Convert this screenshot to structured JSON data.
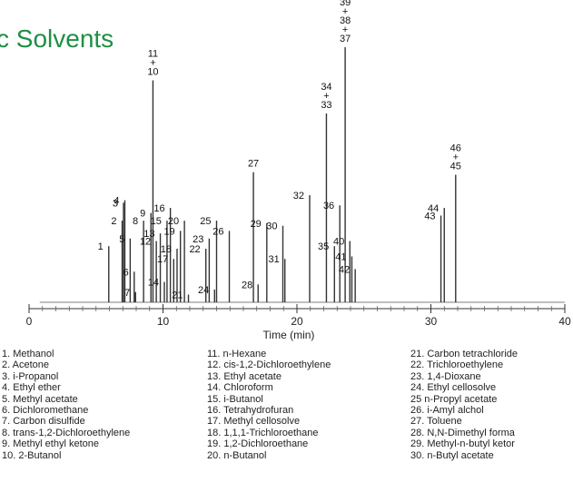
{
  "title": "c Solvents",
  "chart_data": {
    "type": "line",
    "xlabel": "Time (min)",
    "xlim": [
      0,
      40
    ],
    "x_ticks": [
      "0",
      "10",
      "20",
      "30",
      "40"
    ],
    "peaks": [
      {
        "label": "1",
        "time": 5.95,
        "height": 0.22
      },
      {
        "label": "2",
        "time": 6.95,
        "height": 0.32
      },
      {
        "label": "3",
        "time": 7.05,
        "height": 0.39
      },
      {
        "label": "4",
        "time": 7.15,
        "height": 0.4
      },
      {
        "label": "5",
        "time": 7.55,
        "height": 0.25
      },
      {
        "label": "6",
        "time": 7.85,
        "height": 0.12
      },
      {
        "label": "7",
        "time": 7.95,
        "height": 0.04
      },
      {
        "label": "8",
        "time": 8.55,
        "height": 0.32
      },
      {
        "label": "9",
        "time": 9.1,
        "height": 0.35
      },
      {
        "label": "11+10",
        "time": 9.25,
        "height": 0.87
      },
      {
        "label": "12",
        "time": 9.5,
        "height": 0.24
      },
      {
        "label": "13",
        "time": 9.8,
        "height": 0.27
      },
      {
        "label": "14",
        "time": 10.1,
        "height": 0.08
      },
      {
        "label": "15",
        "time": 10.3,
        "height": 0.32
      },
      {
        "label": "16",
        "time": 10.55,
        "height": 0.37
      },
      {
        "label": "17",
        "time": 10.8,
        "height": 0.17
      },
      {
        "label": "18",
        "time": 11.05,
        "height": 0.21
      },
      {
        "label": "19",
        "time": 11.3,
        "height": 0.28
      },
      {
        "label": "20",
        "time": 11.6,
        "height": 0.32
      },
      {
        "label": "21",
        "time": 11.9,
        "height": 0.03
      },
      {
        "label": "22",
        "time": 13.2,
        "height": 0.21
      },
      {
        "label": "23",
        "time": 13.45,
        "height": 0.25
      },
      {
        "label": "24",
        "time": 13.85,
        "height": 0.05
      },
      {
        "label": "25",
        "time": 14.0,
        "height": 0.32
      },
      {
        "label": "26",
        "time": 14.95,
        "height": 0.28
      },
      {
        "label": "27",
        "time": 16.75,
        "height": 0.51
      },
      {
        "label": "28",
        "time": 17.1,
        "height": 0.07
      },
      {
        "label": "29",
        "time": 17.75,
        "height": 0.31
      },
      {
        "label": "30",
        "time": 18.95,
        "height": 0.3
      },
      {
        "label": "31",
        "time": 19.1,
        "height": 0.17
      },
      {
        "label": "32",
        "time": 20.95,
        "height": 0.42
      },
      {
        "label": "34+33",
        "time": 22.2,
        "height": 0.74
      },
      {
        "label": "35",
        "time": 22.8,
        "height": 0.22
      },
      {
        "label": "36",
        "time": 23.2,
        "height": 0.38
      },
      {
        "label": "39+38+37",
        "time": 23.6,
        "height": 1.0
      },
      {
        "label": "40",
        "time": 23.95,
        "height": 0.24
      },
      {
        "label": "41",
        "time": 24.1,
        "height": 0.18
      },
      {
        "label": "42",
        "time": 24.35,
        "height": 0.13
      },
      {
        "label": "43",
        "time": 30.75,
        "height": 0.34
      },
      {
        "label": "44",
        "time": 31.0,
        "height": 0.37
      },
      {
        "label": "46+45",
        "time": 31.85,
        "height": 0.5
      }
    ]
  },
  "legend": {
    "col1": [
      "1. Methanol",
      "2. Acetone",
      "3. i-Propanol",
      "4. Ethyl ether",
      "5. Methyl acetate",
      "6. Dichloromethane",
      "7. Carbon disulfide",
      "8. trans-1,2-Dichloroethylene",
      "9. Methyl ethyl ketone",
      "10. 2-Butanol"
    ],
    "col2": [
      "11. n-Hexane",
      "12. cis-1,2-Dichloroethylene",
      "13. Ethyl acetate",
      "14. Chloroform",
      "15. i-Butanol",
      "16. Tetrahydrofuran",
      "17. Methyl cellosolve",
      "18. 1,1,1-Trichloroethane",
      "19. 1,2-Dichloroethane",
      "20. n-Butanol"
    ],
    "col3": [
      "21. Carbon tetrachloride",
      "22. Trichloroethylene",
      "23. 1,4-Dioxane",
      "24. Ethyl cellosolve",
      "25 n-Propyl acetate",
      "26. i-Amyl alchol",
      "27. Toluene",
      "28. N,N-Dimethyl forma",
      "29. Methyl-n-butyl ketor",
      "30. n-Butyl acetate"
    ]
  }
}
